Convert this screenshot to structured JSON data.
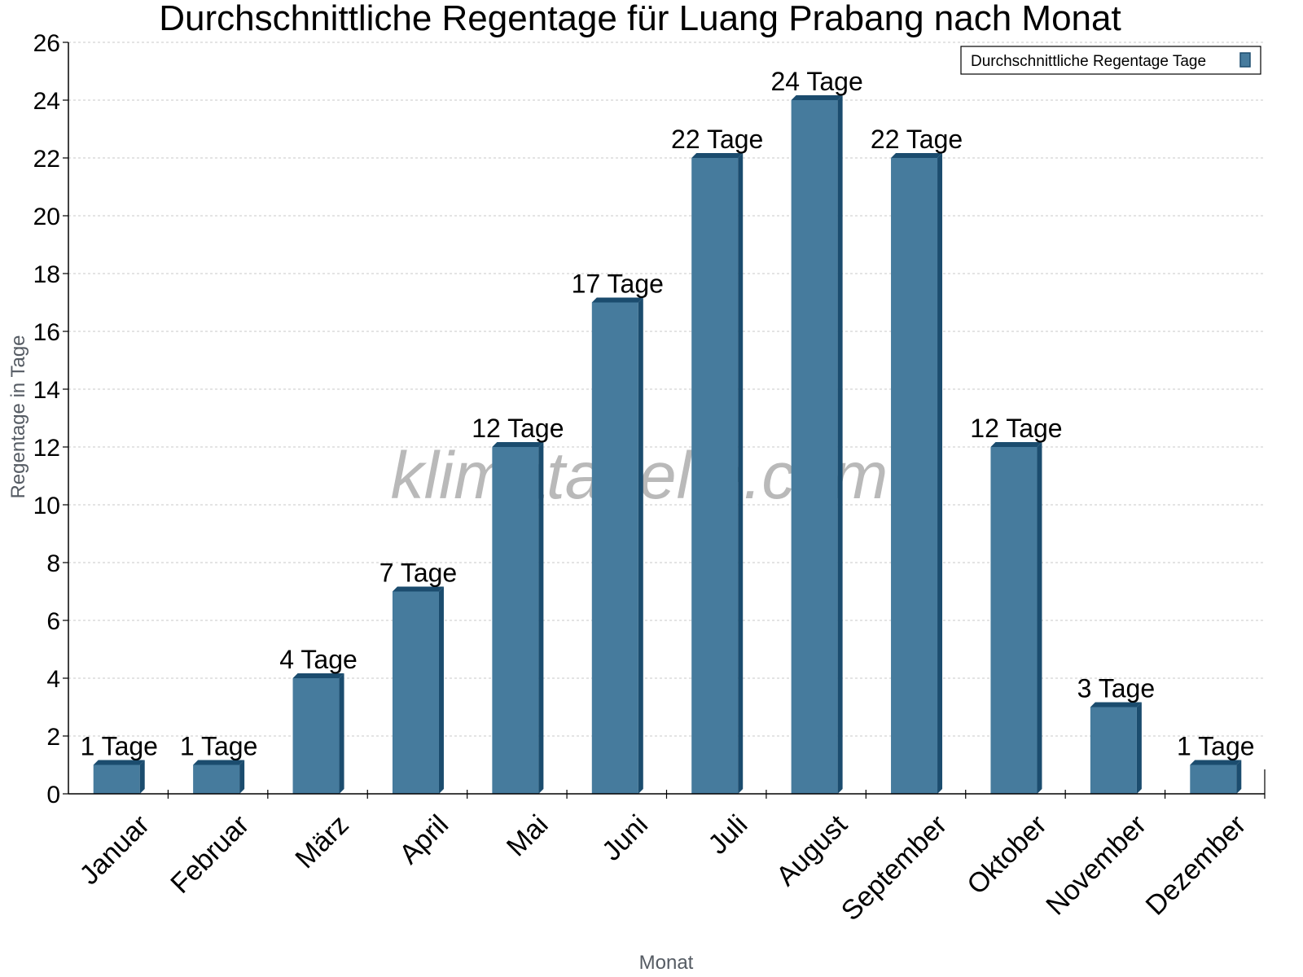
{
  "chart_data": {
    "type": "bar",
    "title": "Durchschnittliche Regentage für Luang Prabang nach Monat",
    "xlabel": "Monat",
    "ylabel": "Regentage in Tage",
    "categories": [
      "Januar",
      "Februar",
      "März",
      "April",
      "Mai",
      "Juni",
      "Juli",
      "August",
      "September",
      "Oktober",
      "November",
      "Dezember"
    ],
    "series": [
      {
        "name": "Durchschnittliche Regentage Tage",
        "values": [
          1,
          1,
          4,
          7,
          12,
          17,
          22,
          24,
          22,
          12,
          3,
          1
        ],
        "color": "#467b9d"
      }
    ],
    "data_labels": [
      "1 Tage",
      "1 Tage",
      "4 Tage",
      "7 Tage",
      "12 Tage",
      "17 Tage",
      "22 Tage",
      "24 Tage",
      "22 Tage",
      "12 Tage",
      "3 Tage",
      "1 Tage"
    ],
    "ylim": [
      0,
      26
    ],
    "yticks": [
      0,
      2,
      4,
      6,
      8,
      10,
      12,
      14,
      16,
      18,
      20,
      22,
      24,
      26
    ],
    "grid": true,
    "legend_position": "top-right",
    "watermark": "klimatabelle.com"
  },
  "colors": {
    "bar_front": "#467b9d",
    "bar_side": "#1b4c6e",
    "bar_top": "#1b4c6e",
    "grid": "#c8c8c8"
  }
}
